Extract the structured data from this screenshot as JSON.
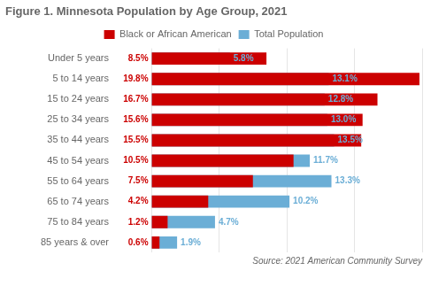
{
  "chart_data": {
    "type": "bar",
    "orientation": "horizontal",
    "title": "Figure 1. Minnesota Population by Age Group, 2021",
    "annotations": [
      "Source: 2021 American Community Survey"
    ],
    "categories": [
      "Under 5 years",
      "5 to 14 years",
      "15 to 24 years",
      "25 to 34 years",
      "35 to 44 years",
      "45 to 54 years",
      "55 to 64 years",
      "65 to 74 years",
      "75 to 84 years",
      "85 years & over"
    ],
    "series": [
      {
        "name": "Black or African American",
        "color": "#cc0000",
        "values": [
          8.5,
          19.8,
          16.7,
          15.6,
          15.5,
          10.5,
          7.5,
          4.2,
          1.2,
          0.6
        ],
        "value_labels": [
          "8.5%",
          "19.8%",
          "16.7%",
          "15.6%",
          "15.5%",
          "10.5%",
          "7.5%",
          "4.2%",
          "1.2%",
          "0.6%"
        ]
      },
      {
        "name": "Total Population",
        "color": "#6baed6",
        "values": [
          5.8,
          13.1,
          12.8,
          13.0,
          13.5,
          11.7,
          13.3,
          10.2,
          4.7,
          1.9
        ],
        "value_labels": [
          "5.8%",
          "13.1%",
          "12.8%",
          "13.0%",
          "13.5%",
          "11.7%",
          "13.3%",
          "10.2%",
          "4.7%",
          "1.9%"
        ]
      }
    ],
    "xlim": [
      0,
      20
    ],
    "xticks": [
      0,
      5,
      10,
      15,
      20
    ],
    "grid": true,
    "legend": "top",
    "data_labels": true,
    "tick_labels": "y"
  }
}
